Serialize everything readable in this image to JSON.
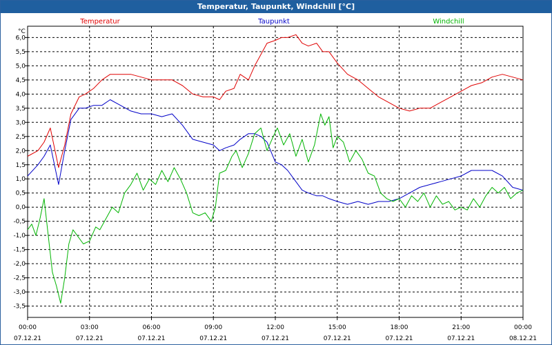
{
  "window": {
    "title": "Temperatur, Taupunkt, Windchill [°C]"
  },
  "chart_data": {
    "type": "line",
    "title": "Temperatur, Taupunkt, Windchill [°C]",
    "ylabel": "°C",
    "ylim": [
      -3.9,
      6.4
    ],
    "ytick_labels": [
      "6,0",
      "5,5",
      "5,0",
      "4,5",
      "4,0",
      "3,5",
      "3,0",
      "2,5",
      "2,0",
      "1,5",
      "1,0",
      "0,5",
      "0,0",
      "-0,5",
      "-1,0",
      "-1,5",
      "-2,0",
      "-2,5",
      "-3,0",
      "-3,5"
    ],
    "ytick_values": [
      6.0,
      5.5,
      5.0,
      4.5,
      4.0,
      3.5,
      3.0,
      2.5,
      2.0,
      1.5,
      1.0,
      0.5,
      0.0,
      -0.5,
      -1.0,
      -1.5,
      -2.0,
      -2.5,
      -3.0,
      -3.5
    ],
    "xlim": [
      0,
      24
    ],
    "xtick_values": [
      0,
      3,
      6,
      9,
      12,
      15,
      18,
      21,
      24
    ],
    "xtick_times": [
      "00:00",
      "03:00",
      "06:00",
      "09:00",
      "12:00",
      "15:00",
      "18:00",
      "21:00",
      "00:00"
    ],
    "xtick_dates": [
      "07.12.21",
      "07.12.21",
      "07.12.21",
      "07.12.21",
      "07.12.21",
      "07.12.21",
      "07.12.21",
      "07.12.21",
      "08.12.21"
    ],
    "grid": true,
    "legend_position": "top",
    "series": [
      {
        "name": "Temperatur",
        "color": "#e00000",
        "x": [
          0,
          0.5,
          0.8,
          1.1,
          1.5,
          1.8,
          2.1,
          2.5,
          2.8,
          3.2,
          3.6,
          4.0,
          4.5,
          5.0,
          5.5,
          6.0,
          6.5,
          7.0,
          7.5,
          8.0,
          8.5,
          9.0,
          9.3,
          9.6,
          10.0,
          10.3,
          10.7,
          11.0,
          11.3,
          11.6,
          12.0,
          12.3,
          12.6,
          13.0,
          13.3,
          13.6,
          14.0,
          14.3,
          14.6,
          15.0,
          15.5,
          16.0,
          16.5,
          17.0,
          17.5,
          18.0,
          18.5,
          19.0,
          19.5,
          20.0,
          20.5,
          21.0,
          21.5,
          22.0,
          22.5,
          23.0,
          23.5,
          24.0
        ],
        "values": [
          1.8,
          2.0,
          2.3,
          2.8,
          1.4,
          2.2,
          3.3,
          3.9,
          4.0,
          4.2,
          4.5,
          4.7,
          4.7,
          4.7,
          4.6,
          4.5,
          4.5,
          4.5,
          4.3,
          4.0,
          3.9,
          3.9,
          3.8,
          4.1,
          4.2,
          4.7,
          4.5,
          5.0,
          5.4,
          5.8,
          5.9,
          6.0,
          6.0,
          6.1,
          5.8,
          5.7,
          5.8,
          5.5,
          5.5,
          5.1,
          4.7,
          4.5,
          4.2,
          3.9,
          3.7,
          3.5,
          3.4,
          3.5,
          3.5,
          3.7,
          3.9,
          4.1,
          4.3,
          4.4,
          4.6,
          4.7,
          4.6,
          4.5
        ]
      },
      {
        "name": "Taupunkt",
        "color": "#0000c8",
        "x": [
          0,
          0.5,
          0.8,
          1.1,
          1.5,
          1.8,
          2.1,
          2.5,
          2.8,
          3.2,
          3.6,
          4.0,
          4.5,
          5.0,
          5.5,
          6.0,
          6.5,
          7.0,
          7.5,
          8.0,
          8.5,
          9.0,
          9.3,
          9.6,
          10.0,
          10.3,
          10.7,
          11.0,
          11.3,
          11.6,
          12.0,
          12.3,
          12.6,
          13.0,
          13.3,
          13.6,
          14.0,
          14.3,
          14.6,
          15.0,
          15.5,
          16.0,
          16.5,
          17.0,
          17.5,
          18.0,
          18.5,
          19.0,
          19.5,
          20.0,
          20.5,
          21.0,
          21.5,
          22.0,
          22.5,
          23.0,
          23.5,
          24.0
        ],
        "values": [
          1.1,
          1.5,
          1.8,
          2.2,
          0.8,
          2.0,
          3.1,
          3.5,
          3.5,
          3.6,
          3.6,
          3.8,
          3.6,
          3.4,
          3.3,
          3.3,
          3.2,
          3.3,
          2.9,
          2.4,
          2.3,
          2.2,
          2.0,
          2.1,
          2.2,
          2.4,
          2.6,
          2.6,
          2.5,
          2.3,
          1.6,
          1.5,
          1.3,
          0.9,
          0.6,
          0.5,
          0.4,
          0.4,
          0.3,
          0.2,
          0.1,
          0.2,
          0.1,
          0.2,
          0.2,
          0.3,
          0.5,
          0.7,
          0.8,
          0.9,
          1.0,
          1.1,
          1.3,
          1.3,
          1.3,
          1.1,
          0.7,
          0.6
        ]
      },
      {
        "name": "Windchill",
        "color": "#00b400",
        "x": [
          0,
          0.2,
          0.4,
          0.6,
          0.8,
          1.0,
          1.2,
          1.4,
          1.6,
          1.8,
          2.0,
          2.2,
          2.4,
          2.7,
          3.0,
          3.3,
          3.5,
          3.8,
          4.1,
          4.4,
          4.7,
          5.0,
          5.3,
          5.6,
          5.9,
          6.2,
          6.5,
          6.8,
          7.1,
          7.4,
          7.7,
          8.0,
          8.3,
          8.6,
          8.9,
          9.1,
          9.3,
          9.6,
          9.9,
          10.1,
          10.4,
          10.7,
          11.0,
          11.3,
          11.6,
          11.9,
          12.1,
          12.4,
          12.7,
          13.0,
          13.3,
          13.6,
          13.9,
          14.2,
          14.4,
          14.6,
          14.8,
          15.0,
          15.3,
          15.6,
          15.9,
          16.2,
          16.5,
          16.8,
          17.1,
          17.4,
          17.7,
          18.0,
          18.3,
          18.6,
          18.9,
          19.2,
          19.5,
          19.8,
          20.1,
          20.4,
          20.7,
          21.0,
          21.3,
          21.6,
          21.9,
          22.2,
          22.5,
          22.8,
          23.1,
          23.4,
          23.7,
          24.0
        ],
        "values": [
          -0.8,
          -0.6,
          -1.0,
          -0.4,
          0.3,
          -1.0,
          -2.3,
          -2.8,
          -3.4,
          -2.5,
          -1.3,
          -0.8,
          -1.0,
          -1.3,
          -1.2,
          -0.7,
          -0.8,
          -0.4,
          0.0,
          -0.2,
          0.5,
          0.8,
          1.2,
          0.6,
          1.0,
          0.8,
          1.3,
          0.9,
          1.4,
          1.0,
          0.5,
          -0.2,
          -0.3,
          -0.2,
          -0.5,
          0.0,
          1.2,
          1.3,
          1.8,
          2.0,
          1.4,
          1.9,
          2.6,
          2.8,
          2.0,
          2.5,
          2.8,
          2.2,
          2.6,
          1.8,
          2.4,
          1.6,
          2.2,
          3.3,
          2.9,
          3.2,
          2.1,
          2.5,
          2.3,
          1.6,
          2.0,
          1.7,
          1.2,
          1.1,
          0.5,
          0.3,
          0.2,
          0.3,
          0.0,
          0.4,
          0.2,
          0.5,
          0.0,
          0.4,
          0.1,
          0.2,
          -0.1,
          0.0,
          -0.1,
          0.3,
          0.0,
          0.4,
          0.7,
          0.5,
          0.7,
          0.3,
          0.5,
          0.6
        ]
      }
    ]
  }
}
